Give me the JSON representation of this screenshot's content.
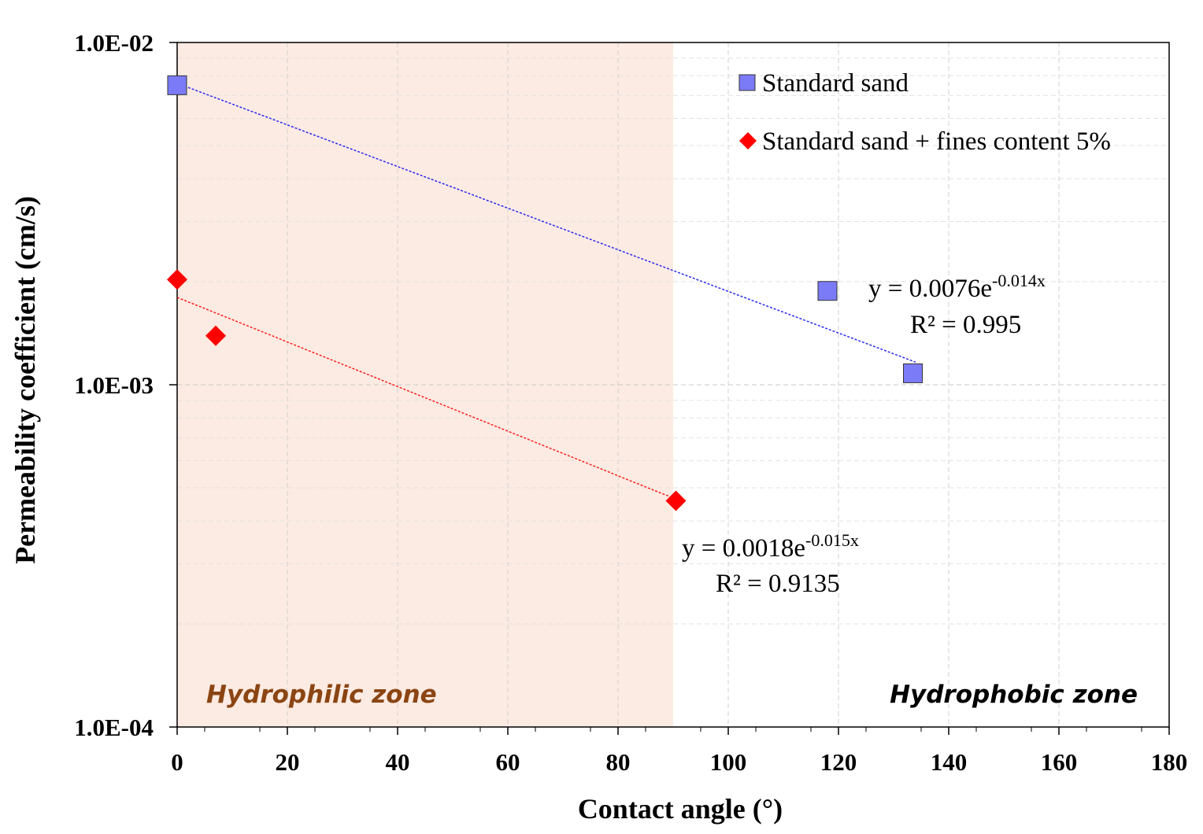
{
  "chart_data": {
    "type": "scatter",
    "title": "",
    "xlabel": "Contact angle (°)",
    "ylabel": "Permeability coefficient (cm/s)",
    "xlim": [
      0,
      180
    ],
    "ylim": [
      0.0001,
      0.01
    ],
    "y_scale": "log",
    "x_ticks": [
      "0",
      "20",
      "40",
      "60",
      "80",
      "100",
      "120",
      "140",
      "160",
      "180"
    ],
    "y_ticks": [
      "1.0E-04",
      "1.0E-03",
      "1.0E-02"
    ],
    "grid": true,
    "legend_position": "top-right",
    "series": [
      {
        "name": "Standard sand",
        "marker": "square",
        "color": "#7b7bf7",
        "trend_color": "#2a2af0",
        "points": [
          {
            "x": 0,
            "y": 0.0075
          },
          {
            "x": 118,
            "y": 0.00188
          },
          {
            "x": 133.5,
            "y": 0.00108
          }
        ],
        "trendline": {
          "a": 0.0076,
          "b": -0.014,
          "x_range": [
            0,
            134
          ]
        },
        "equation": {
          "prefix": "y = 0.0076e",
          "exponent": "-0.014x",
          "r2": "R² = 0.995"
        }
      },
      {
        "name": "Standard sand + fines content 5%",
        "marker": "diamond",
        "color": "#ff0000",
        "trend_color": "#ff2020",
        "points": [
          {
            "x": 0,
            "y": 0.00203
          },
          {
            "x": 7,
            "y": 0.00139
          },
          {
            "x": 90.5,
            "y": 0.000458
          }
        ],
        "trendline": {
          "a": 0.0018,
          "b": -0.015,
          "x_range": [
            0,
            90.5
          ]
        },
        "equation": {
          "prefix": "y = 0.0018e",
          "exponent": "-0.015x",
          "r2": "R² = 0.9135"
        }
      }
    ],
    "zones": {
      "hydrophilic": {
        "label": "Hydrophilic zone",
        "x_range": [
          0,
          90
        ],
        "fill": "#fcebe2",
        "text_color": "#8b4513"
      },
      "hydrophobic": {
        "label": "Hydrophobic zone",
        "text_color": "#000000"
      }
    }
  }
}
